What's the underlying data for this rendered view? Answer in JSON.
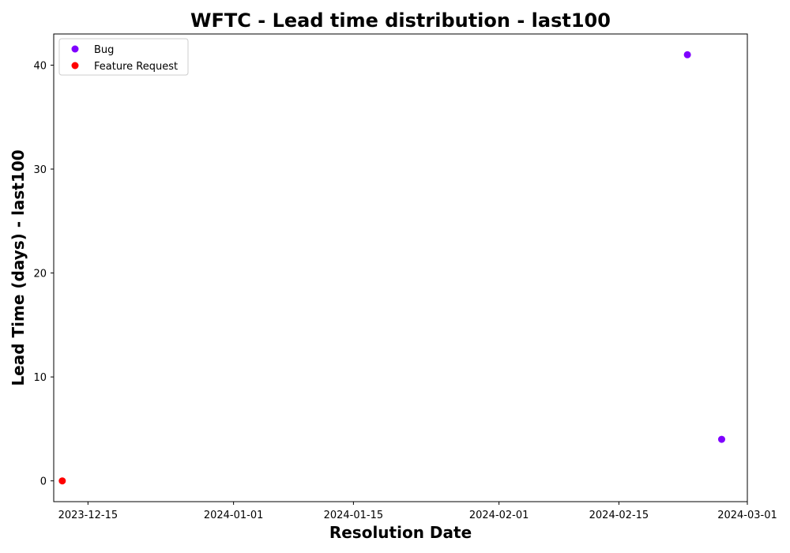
{
  "chart_data": {
    "type": "scatter",
    "title": "WFTC - Lead time distribution - last100",
    "xlabel": "Resolution Date",
    "ylabel": "Lead Time (days) - last100",
    "x_scale": "date",
    "xlim": [
      "2023-12-11",
      "2024-03-01"
    ],
    "ylim": [
      -2,
      43
    ],
    "x_ticks": [
      "2023-12-15",
      "2024-01-01",
      "2024-01-15",
      "2024-02-01",
      "2024-02-15",
      "2024-03-01"
    ],
    "y_ticks": [
      0,
      10,
      20,
      30,
      40
    ],
    "grid": false,
    "legend_position": "top-left",
    "series": [
      {
        "name": "Bug",
        "color": "#7f00ff",
        "points": [
          {
            "x": "2024-02-23",
            "y": 41
          },
          {
            "x": "2024-02-27",
            "y": 4
          }
        ]
      },
      {
        "name": "Feature Request",
        "color": "#ff0000",
        "points": [
          {
            "x": "2023-12-12",
            "y": 0
          }
        ]
      }
    ]
  }
}
